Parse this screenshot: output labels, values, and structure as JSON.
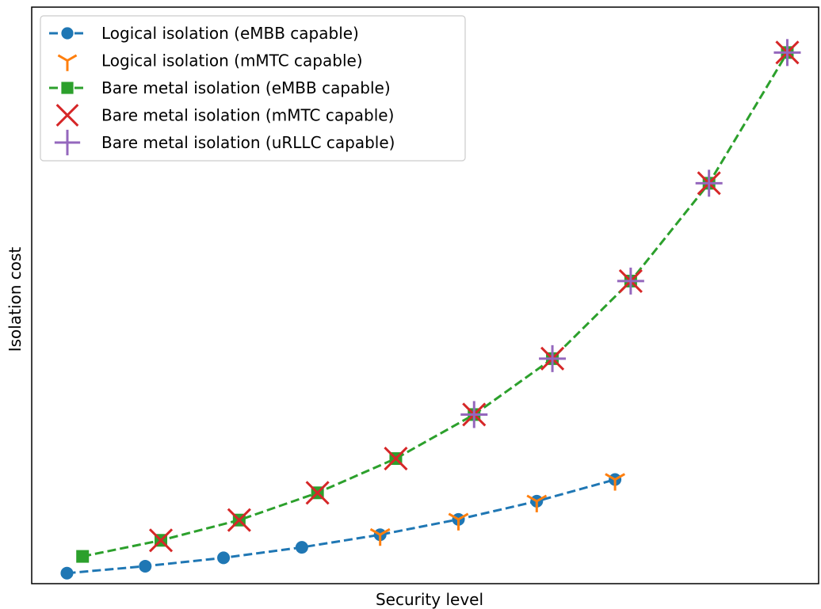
{
  "chart_data": {
    "type": "line",
    "title": "",
    "xlabel": "Security level",
    "ylabel": "Isolation cost",
    "x_ticks": "none",
    "y_ticks": "none",
    "xlim": [
      0.55,
      10.6
    ],
    "ylim": [
      -0.15,
      8.1
    ],
    "grid": false,
    "legend_position": "top-left",
    "series": [
      {
        "name": "Logical isolation (eMBB capable)",
        "color": "#1f77b4",
        "marker": "circle",
        "line": "dashed",
        "x": [
          1,
          2,
          3,
          4,
          5,
          6,
          7,
          8
        ],
        "y": [
          0.0,
          0.1,
          0.22,
          0.37,
          0.55,
          0.77,
          1.03,
          1.34
        ]
      },
      {
        "name": "Logical isolation (mMTC capable)",
        "color": "#ff7f0e",
        "marker": "tri-down",
        "line": "none",
        "x": [
          5,
          6,
          7,
          8
        ],
        "y": [
          0.55,
          0.77,
          1.03,
          1.34
        ]
      },
      {
        "name": "Bare metal isolation (eMBB capable)",
        "color": "#2ca02c",
        "marker": "square",
        "line": "dashed",
        "x": [
          1.2,
          2.2,
          3.2,
          4.2,
          5.2,
          6.2,
          7.2,
          8.2,
          9.2,
          10.2
        ],
        "y": [
          0.24,
          0.47,
          0.76,
          1.15,
          1.64,
          2.27,
          3.07,
          4.18,
          5.58,
          7.45
        ]
      },
      {
        "name": "Bare metal isolation (mMTC  capable)",
        "color": "#d62728",
        "marker": "x",
        "line": "none",
        "x": [
          2.2,
          3.2,
          4.2,
          5.2,
          6.2,
          7.2,
          8.2,
          9.2,
          10.2
        ],
        "y": [
          0.47,
          0.76,
          1.15,
          1.64,
          2.27,
          3.07,
          4.18,
          5.58,
          7.45
        ]
      },
      {
        "name": "Bare metal isolation (uRLLC capable)",
        "color": "#9467bd",
        "marker": "plus",
        "line": "none",
        "x": [
          6.2,
          7.2,
          8.2,
          9.2,
          10.2
        ],
        "y": [
          2.27,
          3.07,
          4.18,
          5.58,
          7.45
        ]
      }
    ]
  }
}
